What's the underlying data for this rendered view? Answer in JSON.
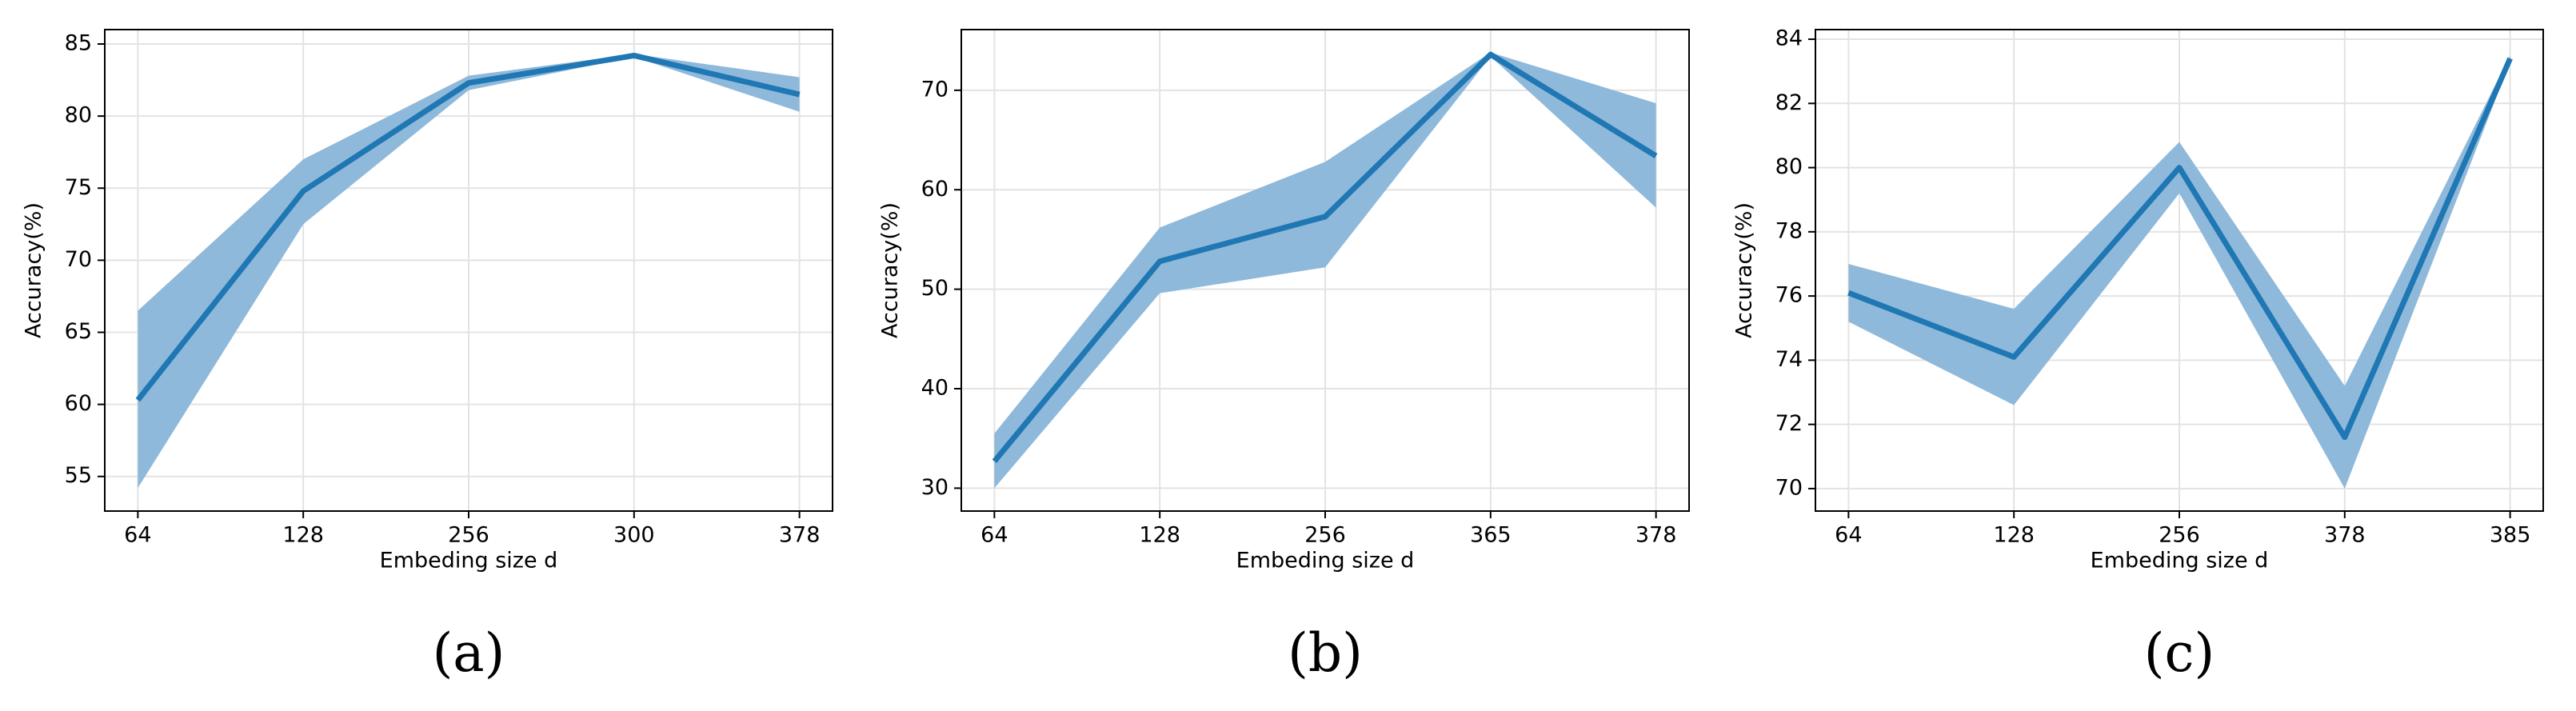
{
  "chart_data": [
    {
      "type": "line",
      "ylabel": "Accuracy(%)",
      "xlabel": "Embeding size d",
      "caption": "(a)",
      "categories": [
        "64",
        "128",
        "256",
        "300",
        "378"
      ],
      "values": [
        60.3,
        74.8,
        82.3,
        84.2,
        81.5
      ],
      "upper": [
        66.5,
        77.0,
        82.8,
        84.3,
        82.7
      ],
      "lower": [
        54.2,
        72.5,
        81.8,
        84.1,
        80.3
      ],
      "color": "#1f77b4",
      "band_color": "#8fb9da",
      "ylim": [
        52.6,
        86.0
      ],
      "yticks": [
        55,
        60,
        65,
        70,
        75,
        80,
        85
      ],
      "grid": true
    },
    {
      "type": "line",
      "ylabel": "Accuracy(%)",
      "xlabel": "Embeding size d",
      "caption": "(b)",
      "categories": [
        "64",
        "128",
        "256",
        "365",
        "378"
      ],
      "values": [
        32.7,
        52.8,
        57.3,
        73.6,
        63.4
      ],
      "upper": [
        35.5,
        56.2,
        62.8,
        73.8,
        68.7
      ],
      "lower": [
        30.0,
        49.6,
        52.2,
        73.4,
        58.2
      ],
      "color": "#1f77b4",
      "band_color": "#8fb9da",
      "ylim": [
        27.7,
        76.1
      ],
      "yticks": [
        30,
        40,
        50,
        60,
        70
      ],
      "grid": true
    },
    {
      "type": "line",
      "ylabel": "Accuracy(%)",
      "xlabel": "Embeding size d",
      "caption": "(c)",
      "categories": [
        "64",
        "128",
        "256",
        "378",
        "385"
      ],
      "values": [
        76.1,
        74.1,
        80.0,
        71.6,
        83.4
      ],
      "upper": [
        77.0,
        75.6,
        80.8,
        73.2,
        83.5
      ],
      "lower": [
        75.2,
        72.6,
        79.2,
        70.0,
        83.3
      ],
      "color": "#1f77b4",
      "band_color": "#8fb9da",
      "ylim": [
        69.3,
        84.3
      ],
      "yticks": [
        70,
        72,
        74,
        76,
        78,
        80,
        82,
        84
      ],
      "grid": true
    }
  ]
}
